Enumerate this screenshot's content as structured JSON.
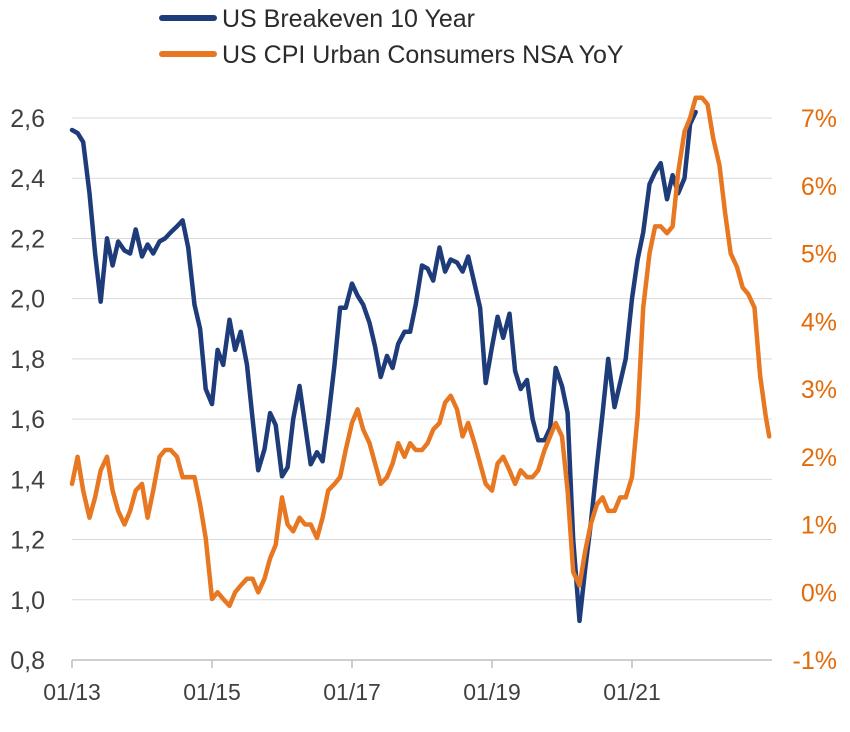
{
  "chart_data": {
    "type": "line",
    "legend": [
      {
        "label": "US Breakeven 10 Year",
        "color": "#1f3c7a"
      },
      {
        "label": "US CPI Urban Consumers NSA YoY",
        "color": "#e87722"
      }
    ],
    "legend_position": "top",
    "grid": "horizontal",
    "x_ticks": [
      "01/13",
      "01/15",
      "01/17",
      "01/19",
      "01/21"
    ],
    "x_range": [
      2013.0,
      2023.0
    ],
    "y_left": {
      "range": [
        0.8,
        2.6
      ],
      "ticks": [
        "0,8",
        "1,0",
        "1,2",
        "1,4",
        "1,6",
        "1,8",
        "2,0",
        "2,2",
        "2,4",
        "2,6"
      ],
      "tick_values": [
        0.8,
        1.0,
        1.2,
        1.4,
        1.6,
        1.8,
        2.0,
        2.2,
        2.4,
        2.6
      ]
    },
    "y_right": {
      "range": [
        -1,
        7
      ],
      "ticks": [
        "-1%",
        "0%",
        "1%",
        "2%",
        "3%",
        "4%",
        "5%",
        "6%",
        "7%"
      ],
      "tick_values": [
        -1,
        0,
        1,
        2,
        3,
        4,
        5,
        6,
        7
      ]
    },
    "series": [
      {
        "name": "US Breakeven 10 Year",
        "axis": "left",
        "color": "#1f3c7a",
        "points": [
          [
            2013.0,
            2.56
          ],
          [
            2013.08,
            2.55
          ],
          [
            2013.16,
            2.52
          ],
          [
            2013.25,
            2.35
          ],
          [
            2013.33,
            2.15
          ],
          [
            2013.41,
            1.99
          ],
          [
            2013.5,
            2.2
          ],
          [
            2013.58,
            2.11
          ],
          [
            2013.66,
            2.19
          ],
          [
            2013.75,
            2.16
          ],
          [
            2013.83,
            2.15
          ],
          [
            2013.91,
            2.23
          ],
          [
            2014.0,
            2.14
          ],
          [
            2014.08,
            2.18
          ],
          [
            2014.16,
            2.15
          ],
          [
            2014.25,
            2.19
          ],
          [
            2014.33,
            2.2
          ],
          [
            2014.41,
            2.22
          ],
          [
            2014.5,
            2.24
          ],
          [
            2014.58,
            2.26
          ],
          [
            2014.66,
            2.17
          ],
          [
            2014.75,
            1.98
          ],
          [
            2014.83,
            1.9
          ],
          [
            2014.91,
            1.7
          ],
          [
            2015.0,
            1.65
          ],
          [
            2015.08,
            1.83
          ],
          [
            2015.16,
            1.78
          ],
          [
            2015.25,
            1.93
          ],
          [
            2015.33,
            1.83
          ],
          [
            2015.41,
            1.89
          ],
          [
            2015.5,
            1.78
          ],
          [
            2015.58,
            1.6
          ],
          [
            2015.66,
            1.43
          ],
          [
            2015.75,
            1.5
          ],
          [
            2015.83,
            1.62
          ],
          [
            2015.91,
            1.58
          ],
          [
            2016.0,
            1.41
          ],
          [
            2016.08,
            1.44
          ],
          [
            2016.16,
            1.6
          ],
          [
            2016.25,
            1.71
          ],
          [
            2016.33,
            1.58
          ],
          [
            2016.41,
            1.45
          ],
          [
            2016.5,
            1.49
          ],
          [
            2016.58,
            1.46
          ],
          [
            2016.66,
            1.6
          ],
          [
            2016.75,
            1.78
          ],
          [
            2016.83,
            1.97
          ],
          [
            2016.91,
            1.97
          ],
          [
            2017.0,
            2.05
          ],
          [
            2017.08,
            2.01
          ],
          [
            2017.16,
            1.98
          ],
          [
            2017.25,
            1.92
          ],
          [
            2017.33,
            1.84
          ],
          [
            2017.41,
            1.74
          ],
          [
            2017.5,
            1.81
          ],
          [
            2017.58,
            1.77
          ],
          [
            2017.66,
            1.85
          ],
          [
            2017.75,
            1.89
          ],
          [
            2017.83,
            1.89
          ],
          [
            2017.91,
            1.98
          ],
          [
            2018.0,
            2.11
          ],
          [
            2018.08,
            2.1
          ],
          [
            2018.16,
            2.06
          ],
          [
            2018.25,
            2.17
          ],
          [
            2018.33,
            2.09
          ],
          [
            2018.41,
            2.13
          ],
          [
            2018.5,
            2.12
          ],
          [
            2018.58,
            2.09
          ],
          [
            2018.66,
            2.14
          ],
          [
            2018.75,
            2.05
          ],
          [
            2018.83,
            1.97
          ],
          [
            2018.91,
            1.72
          ],
          [
            2019.0,
            1.84
          ],
          [
            2019.08,
            1.94
          ],
          [
            2019.16,
            1.87
          ],
          [
            2019.25,
            1.95
          ],
          [
            2019.33,
            1.76
          ],
          [
            2019.41,
            1.7
          ],
          [
            2019.5,
            1.73
          ],
          [
            2019.58,
            1.6
          ],
          [
            2019.66,
            1.53
          ],
          [
            2019.75,
            1.53
          ],
          [
            2019.83,
            1.57
          ],
          [
            2019.91,
            1.77
          ],
          [
            2020.0,
            1.71
          ],
          [
            2020.08,
            1.62
          ],
          [
            2020.16,
            1.2
          ],
          [
            2020.25,
            0.93
          ],
          [
            2020.33,
            1.1
          ],
          [
            2020.41,
            1.25
          ],
          [
            2020.5,
            1.45
          ],
          [
            2020.58,
            1.62
          ],
          [
            2020.66,
            1.8
          ],
          [
            2020.75,
            1.64
          ],
          [
            2020.83,
            1.72
          ],
          [
            2020.91,
            1.8
          ],
          [
            2021.0,
            2.0
          ],
          [
            2021.08,
            2.13
          ],
          [
            2021.16,
            2.22
          ],
          [
            2021.25,
            2.38
          ],
          [
            2021.33,
            2.42
          ],
          [
            2021.41,
            2.45
          ],
          [
            2021.5,
            2.33
          ],
          [
            2021.58,
            2.41
          ],
          [
            2021.66,
            2.35
          ],
          [
            2021.75,
            2.4
          ],
          [
            2021.83,
            2.58
          ],
          [
            2021.91,
            2.62
          ]
        ]
      },
      {
        "name": "US CPI Urban Consumers NSA YoY",
        "axis": "right",
        "color": "#e87722",
        "points": [
          [
            2013.0,
            1.6
          ],
          [
            2013.08,
            2.0
          ],
          [
            2013.16,
            1.5
          ],
          [
            2013.25,
            1.1
          ],
          [
            2013.33,
            1.4
          ],
          [
            2013.41,
            1.8
          ],
          [
            2013.5,
            2.0
          ],
          [
            2013.58,
            1.5
          ],
          [
            2013.66,
            1.2
          ],
          [
            2013.75,
            1.0
          ],
          [
            2013.83,
            1.2
          ],
          [
            2013.91,
            1.5
          ],
          [
            2014.0,
            1.6
          ],
          [
            2014.08,
            1.1
          ],
          [
            2014.16,
            1.5
          ],
          [
            2014.25,
            2.0
          ],
          [
            2014.33,
            2.1
          ],
          [
            2014.41,
            2.1
          ],
          [
            2014.5,
            2.0
          ],
          [
            2014.58,
            1.7
          ],
          [
            2014.66,
            1.7
          ],
          [
            2014.75,
            1.7
          ],
          [
            2014.83,
            1.3
          ],
          [
            2014.91,
            0.8
          ],
          [
            2015.0,
            -0.1
          ],
          [
            2015.08,
            0.0
          ],
          [
            2015.16,
            -0.1
          ],
          [
            2015.25,
            -0.2
          ],
          [
            2015.33,
            0.0
          ],
          [
            2015.41,
            0.1
          ],
          [
            2015.5,
            0.2
          ],
          [
            2015.58,
            0.2
          ],
          [
            2015.66,
            0.0
          ],
          [
            2015.75,
            0.2
          ],
          [
            2015.83,
            0.5
          ],
          [
            2015.91,
            0.7
          ],
          [
            2016.0,
            1.4
          ],
          [
            2016.08,
            1.0
          ],
          [
            2016.16,
            0.9
          ],
          [
            2016.25,
            1.1
          ],
          [
            2016.33,
            1.0
          ],
          [
            2016.41,
            1.0
          ],
          [
            2016.5,
            0.8
          ],
          [
            2016.58,
            1.1
          ],
          [
            2016.66,
            1.5
          ],
          [
            2016.75,
            1.6
          ],
          [
            2016.83,
            1.7
          ],
          [
            2016.91,
            2.1
          ],
          [
            2017.0,
            2.5
          ],
          [
            2017.08,
            2.7
          ],
          [
            2017.16,
            2.4
          ],
          [
            2017.25,
            2.2
          ],
          [
            2017.33,
            1.9
          ],
          [
            2017.41,
            1.6
          ],
          [
            2017.5,
            1.7
          ],
          [
            2017.58,
            1.9
          ],
          [
            2017.66,
            2.2
          ],
          [
            2017.75,
            2.0
          ],
          [
            2017.83,
            2.2
          ],
          [
            2017.91,
            2.1
          ],
          [
            2018.0,
            2.1
          ],
          [
            2018.08,
            2.2
          ],
          [
            2018.16,
            2.4
          ],
          [
            2018.25,
            2.5
          ],
          [
            2018.33,
            2.8
          ],
          [
            2018.41,
            2.9
          ],
          [
            2018.5,
            2.7
          ],
          [
            2018.58,
            2.3
          ],
          [
            2018.66,
            2.5
          ],
          [
            2018.75,
            2.2
          ],
          [
            2018.83,
            1.9
          ],
          [
            2018.91,
            1.6
          ],
          [
            2019.0,
            1.5
          ],
          [
            2019.08,
            1.9
          ],
          [
            2019.16,
            2.0
          ],
          [
            2019.25,
            1.8
          ],
          [
            2019.33,
            1.6
          ],
          [
            2019.41,
            1.8
          ],
          [
            2019.5,
            1.7
          ],
          [
            2019.58,
            1.7
          ],
          [
            2019.66,
            1.8
          ],
          [
            2019.75,
            2.1
          ],
          [
            2019.83,
            2.3
          ],
          [
            2019.91,
            2.5
          ],
          [
            2020.0,
            2.3
          ],
          [
            2020.08,
            1.5
          ],
          [
            2020.16,
            0.3
          ],
          [
            2020.25,
            0.1
          ],
          [
            2020.33,
            0.6
          ],
          [
            2020.41,
            1.0
          ],
          [
            2020.5,
            1.3
          ],
          [
            2020.58,
            1.4
          ],
          [
            2020.66,
            1.2
          ],
          [
            2020.75,
            1.2
          ],
          [
            2020.83,
            1.4
          ],
          [
            2020.91,
            1.4
          ],
          [
            2021.0,
            1.7
          ],
          [
            2021.08,
            2.6
          ],
          [
            2021.16,
            4.2
          ],
          [
            2021.25,
            5.0
          ],
          [
            2021.33,
            5.4
          ],
          [
            2021.41,
            5.4
          ],
          [
            2021.5,
            5.3
          ],
          [
            2021.58,
            5.4
          ],
          [
            2021.66,
            6.2
          ],
          [
            2021.75,
            6.8
          ],
          [
            2021.83,
            7.0
          ],
          [
            2021.91,
            7.3
          ],
          [
            2022.0,
            7.3
          ],
          [
            2022.08,
            7.2
          ],
          [
            2022.16,
            6.7
          ],
          [
            2022.25,
            6.3
          ],
          [
            2022.33,
            5.6
          ],
          [
            2022.41,
            5.0
          ],
          [
            2022.5,
            4.8
          ],
          [
            2022.58,
            4.5
          ],
          [
            2022.66,
            4.4
          ],
          [
            2022.75,
            4.2
          ],
          [
            2022.83,
            3.2
          ],
          [
            2022.91,
            2.6
          ],
          [
            2022.96,
            2.3
          ]
        ]
      }
    ]
  }
}
